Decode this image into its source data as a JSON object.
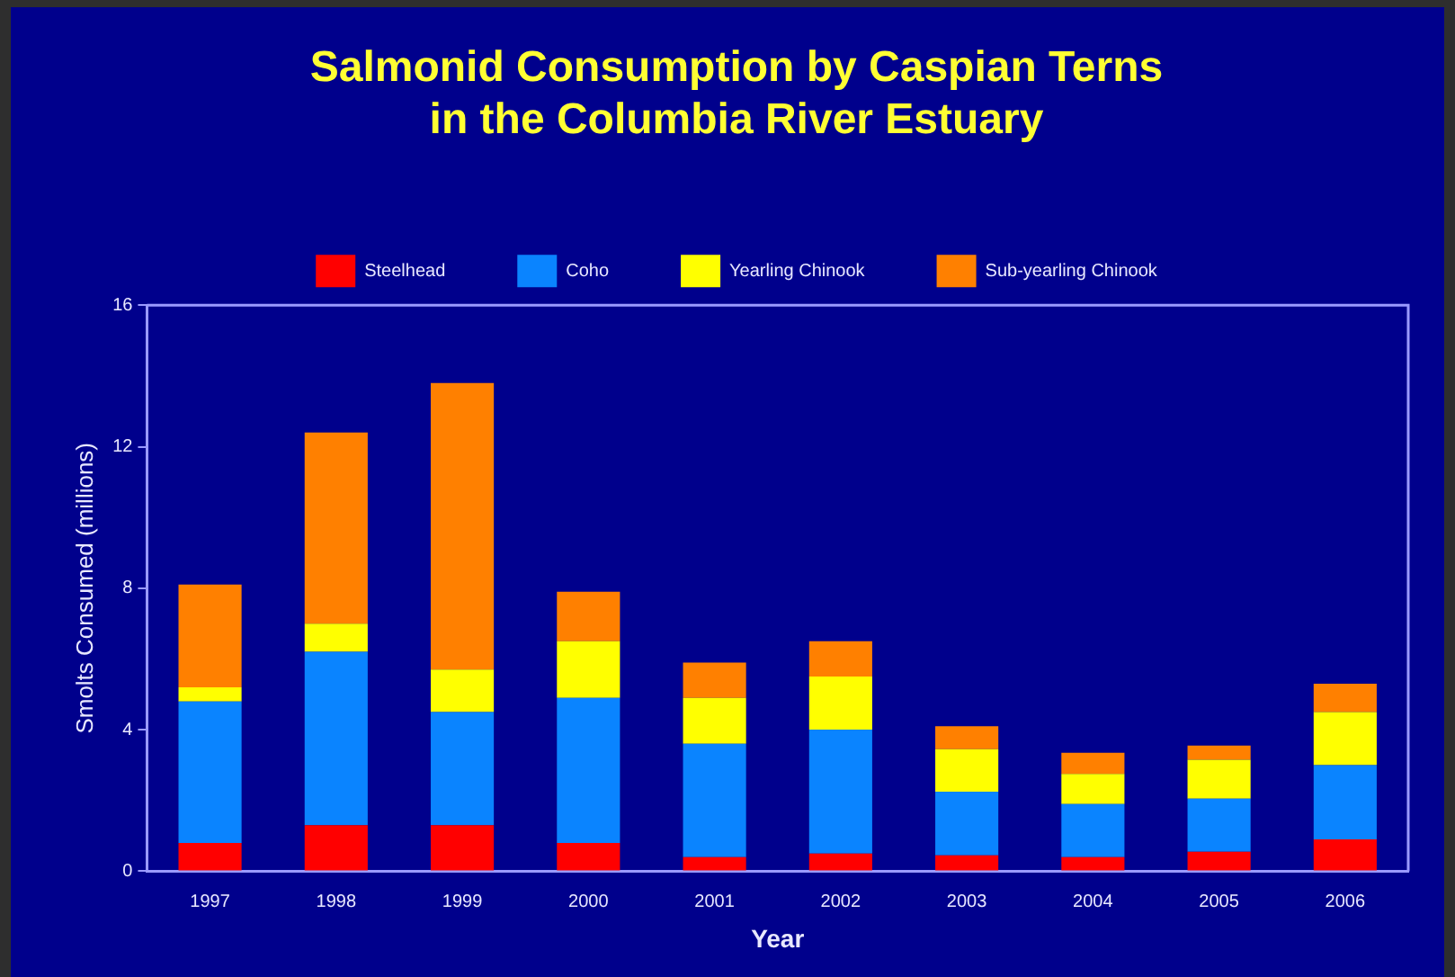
{
  "chart_data": {
    "type": "bar",
    "title": "Salmonid Consumption by Caspian Terns\nin the Columbia River Estuary",
    "xlabel": "Year",
    "ylabel": "Smolts Consumed (millions)",
    "categories": [
      "1997",
      "1998",
      "1999",
      "2000",
      "2001",
      "2002",
      "2003",
      "2004",
      "2005",
      "2006"
    ],
    "stacked": true,
    "legend": "top",
    "grid": false,
    "ylim": [
      0,
      16
    ],
    "yticks": [
      0,
      4,
      8,
      12,
      16
    ],
    "series": [
      {
        "name": "Steelhead",
        "color": "#ff0000",
        "values": [
          0.8,
          1.3,
          1.3,
          0.8,
          0.4,
          0.5,
          0.45,
          0.4,
          0.55,
          0.9
        ]
      },
      {
        "name": "Coho",
        "color": "#0a84ff",
        "values": [
          4.0,
          4.9,
          3.2,
          4.1,
          3.2,
          3.5,
          1.8,
          1.5,
          1.5,
          2.1
        ]
      },
      {
        "name": "Yearling Chinook",
        "color": "#ffff00",
        "values": [
          0.4,
          0.8,
          1.2,
          1.6,
          1.3,
          1.5,
          1.2,
          0.85,
          1.1,
          1.5
        ]
      },
      {
        "name": "Sub-yearling Chinook",
        "color": "#ff8000",
        "values": [
          2.9,
          5.4,
          8.1,
          1.4,
          1.0,
          1.0,
          0.65,
          0.6,
          0.4,
          0.8
        ]
      }
    ]
  }
}
